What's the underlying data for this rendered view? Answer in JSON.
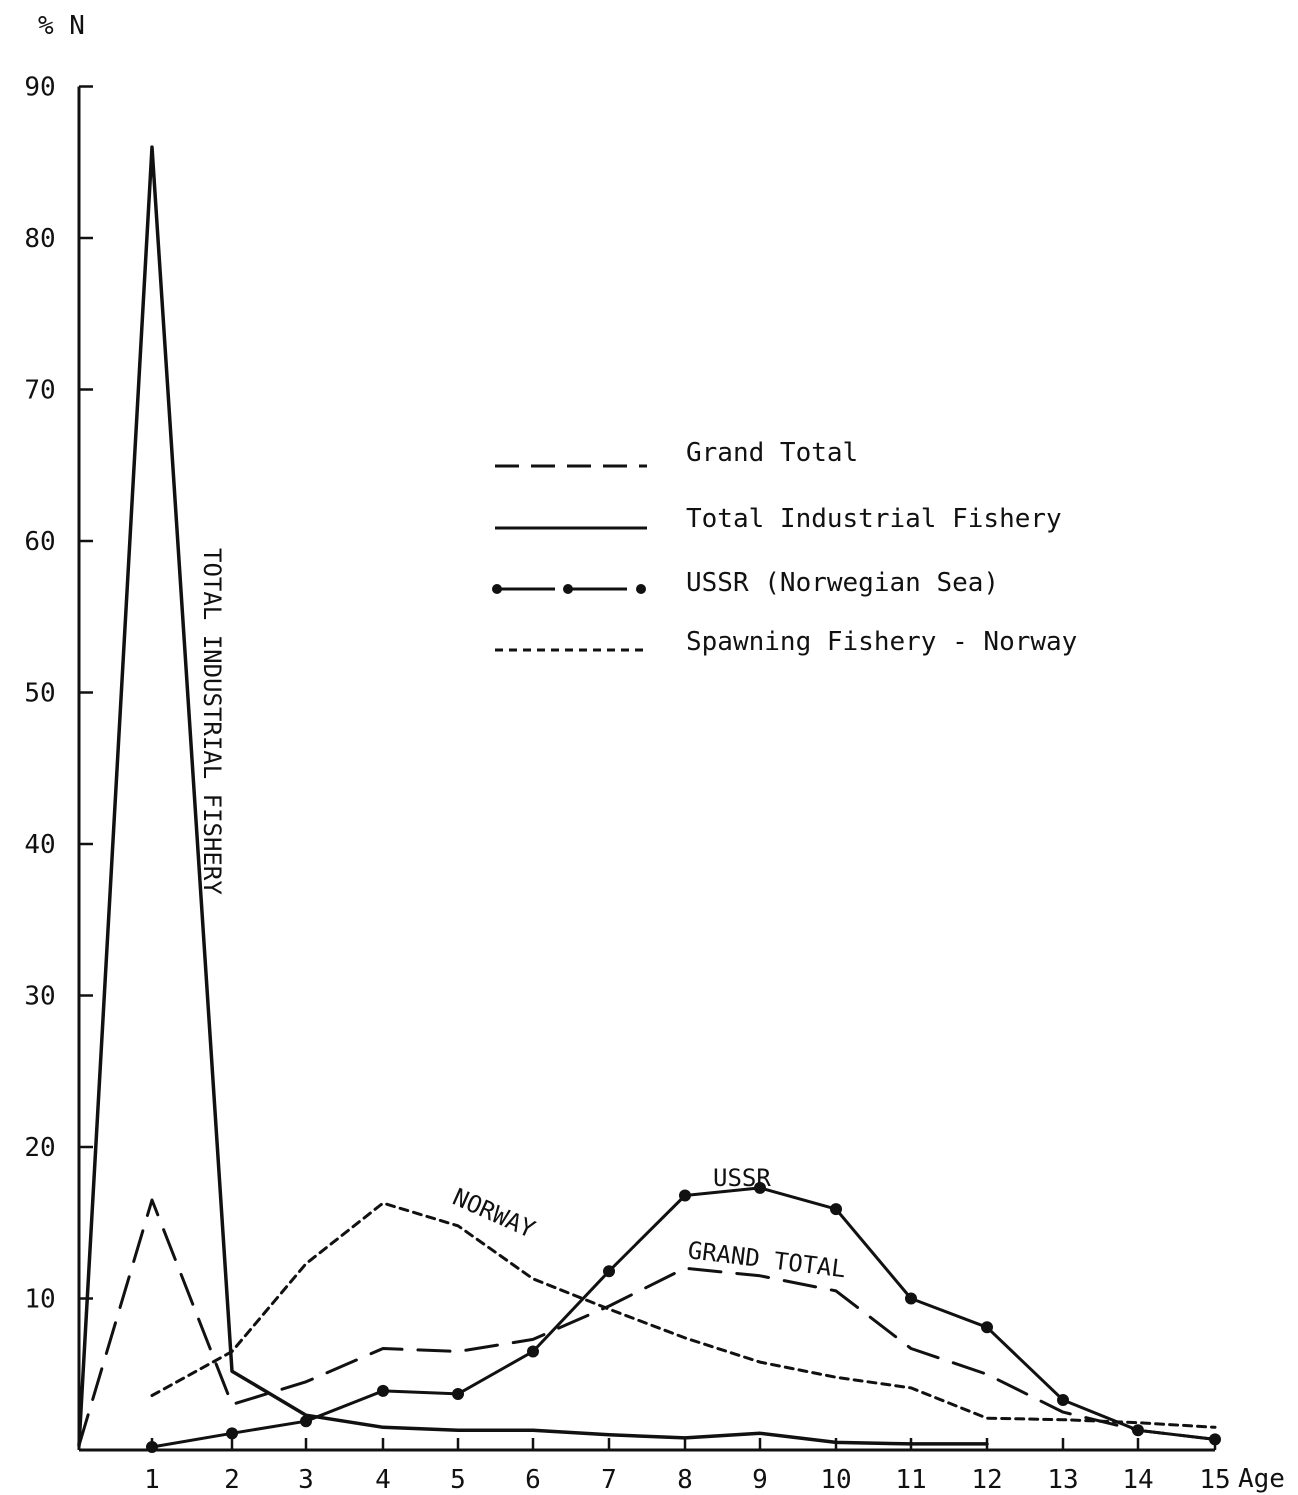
{
  "chart_data": {
    "type": "line",
    "ylabel": "% N",
    "xlabel": "Age",
    "ylim": [
      0,
      90
    ],
    "xlim": [
      0,
      15
    ],
    "x_ticks": [
      1,
      2,
      3,
      4,
      5,
      6,
      7,
      8,
      9,
      10,
      11,
      12,
      13,
      14,
      15
    ],
    "y_ticks": [
      10,
      20,
      30,
      40,
      50,
      60,
      70,
      80,
      90
    ],
    "grid": false,
    "legend_position": "upper-right",
    "series": [
      {
        "name": "Grand Total",
        "style": "dashed",
        "x": [
          0,
          1,
          2,
          3,
          4,
          5,
          6,
          7,
          8,
          9,
          10,
          11,
          12,
          13,
          14,
          15
        ],
        "values": [
          0.3,
          16.5,
          3.0,
          4.5,
          6.7,
          6.5,
          7.3,
          9.5,
          12.0,
          11.5,
          10.5,
          6.7,
          5.0,
          2.5,
          1.3,
          0.7
        ]
      },
      {
        "name": "Total Industrial Fishery",
        "style": "solid",
        "x": [
          0,
          1,
          2,
          3,
          4,
          5,
          6,
          7,
          8,
          9,
          10,
          11,
          12
        ],
        "values": [
          0.3,
          86.0,
          5.2,
          2.3,
          1.5,
          1.3,
          1.3,
          1.0,
          0.8,
          1.1,
          0.5,
          0.4,
          0.4
        ]
      },
      {
        "name": "USSR (Norwegian Sea)",
        "style": "dash-dot-markers",
        "x": [
          1,
          2,
          3,
          4,
          5,
          6,
          7,
          8,
          9,
          10,
          11,
          12,
          13,
          14,
          15
        ],
        "values": [
          0.2,
          1.1,
          1.9,
          3.9,
          3.7,
          6.5,
          11.8,
          16.8,
          17.3,
          15.9,
          10.0,
          8.1,
          3.3,
          1.3,
          0.7
        ]
      },
      {
        "name": "Spawning Fishery - Norway",
        "style": "dotted",
        "x": [
          1,
          2,
          3,
          4,
          5,
          6,
          7,
          8,
          9,
          10,
          11,
          12,
          13,
          14,
          15
        ],
        "values": [
          3.6,
          6.5,
          12.3,
          16.3,
          14.8,
          11.3,
          9.3,
          7.4,
          5.8,
          4.8,
          4.1,
          2.1,
          2.0,
          1.8,
          1.5
        ]
      }
    ],
    "annotations": [
      {
        "text": "TOTAL INDUSTRIAL FISHERY"
      },
      {
        "text": "NORWAY"
      },
      {
        "text": "USSR"
      },
      {
        "text": "GRAND TOTAL"
      }
    ]
  },
  "colors": {
    "ink": "#111111",
    "background": "#ffffff"
  }
}
